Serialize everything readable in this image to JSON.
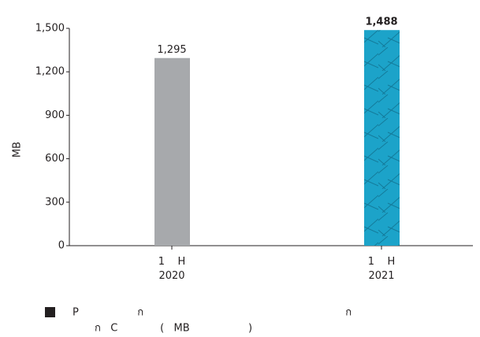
{
  "chart_data": {
    "type": "bar",
    "y_label": "MB",
    "categories": [
      "1    H\n2020",
      "1    H\n2021"
    ],
    "values": [
      1295,
      1488
    ],
    "value_labels": [
      "1,295",
      "1,488"
    ],
    "colors": [
      "#a7a9ac",
      "#1ca3c9"
    ],
    "ylim": [
      0,
      1500
    ],
    "yticks": [
      0,
      300,
      600,
      900,
      {
        "value": 1200,
        "label": "1,200"
      },
      {
        "value": 1500,
        "label": "1,500"
      }
    ],
    "legend": {
      "color": "#231f20",
      "lines": [
        "P                  ก                                                              ก",
        "ก   C             (   MB                  )"
      ]
    }
  }
}
